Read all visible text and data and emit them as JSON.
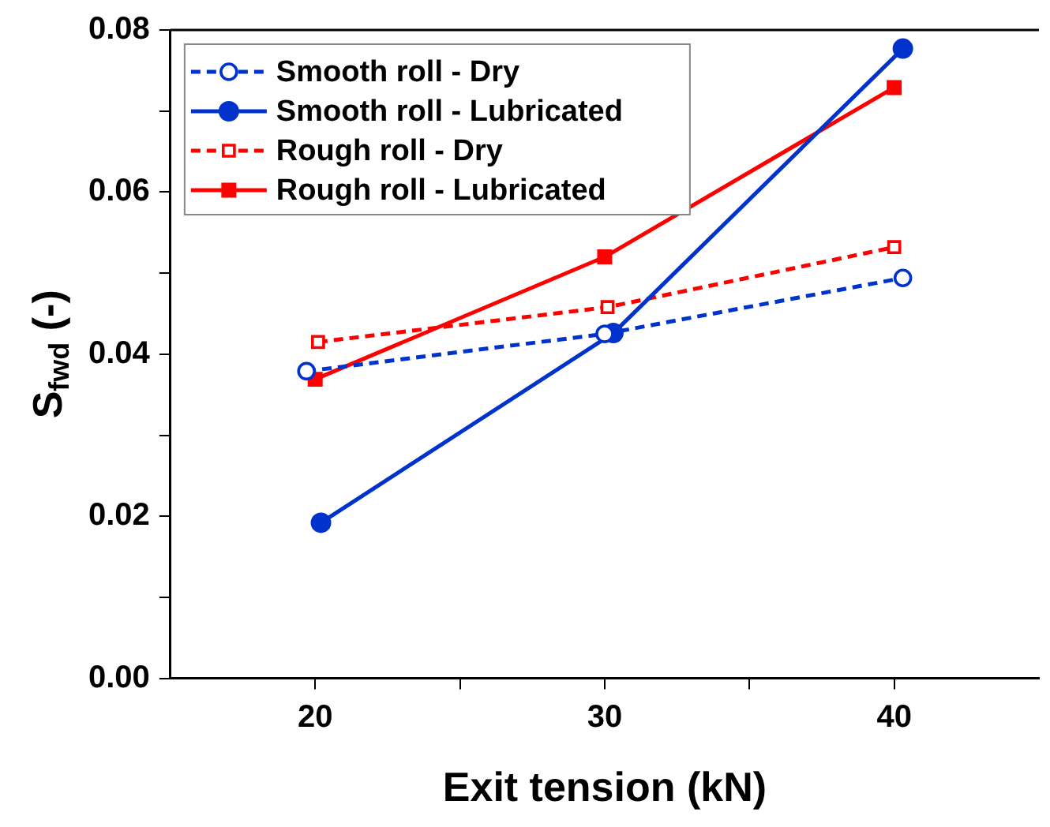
{
  "chart_data": {
    "type": "line",
    "xlabel": "Exit tension (kN)",
    "ylabel": "S$_{fwd}$ (-)",
    "xlim": [
      15,
      45
    ],
    "xticks": [
      20,
      {
        "value": 25,
        "label": null
      },
      30,
      {
        "value": 35,
        "label": null
      },
      40
    ],
    "ylim": [
      0,
      0.08
    ],
    "yticks": [
      {
        "value": 0,
        "label": "0.00"
      },
      {
        "value": 0.01,
        "label": null
      },
      {
        "value": 0.02,
        "label": "0.02"
      },
      {
        "value": 0.03,
        "label": null
      },
      {
        "value": 0.04,
        "label": "0.04"
      },
      {
        "value": 0.05,
        "label": null
      },
      {
        "value": 0.06,
        "label": "0.06"
      },
      {
        "value": 0.07,
        "label": null
      },
      {
        "value": 0.08,
        "label": "0.08"
      }
    ],
    "grid": false,
    "legend": "top left",
    "series": [
      {
        "name": "Smooth roll - Dry",
        "color": "#0033cc",
        "x": [
          19.7,
          30.0,
          40.3
        ],
        "values": [
          0.0379,
          0.0425,
          0.0494
        ],
        "marker": "circle",
        "line_style": "dashed"
      },
      {
        "name": "Smooth roll - Lubricated",
        "color": "#0033cc",
        "x": [
          20.2,
          30.3,
          40.3
        ],
        "values": [
          0.0192,
          0.0426,
          0.0777
        ],
        "marker": "circle",
        "line_style": "solid"
      },
      {
        "name": "Rough roll - Dry",
        "color": "#ff0000",
        "x": [
          20.1,
          30.1,
          40.0
        ],
        "values": [
          0.0415,
          0.0458,
          0.0532
        ],
        "marker": "square",
        "line_style": "dashed"
      },
      {
        "name": "Rough roll - Lubricated",
        "color": "#ff0000",
        "x": [
          20.0,
          30.0,
          40.0
        ],
        "values": [
          0.0369,
          0.052,
          0.0729
        ],
        "marker": "square",
        "line_style": "solid"
      }
    ]
  }
}
